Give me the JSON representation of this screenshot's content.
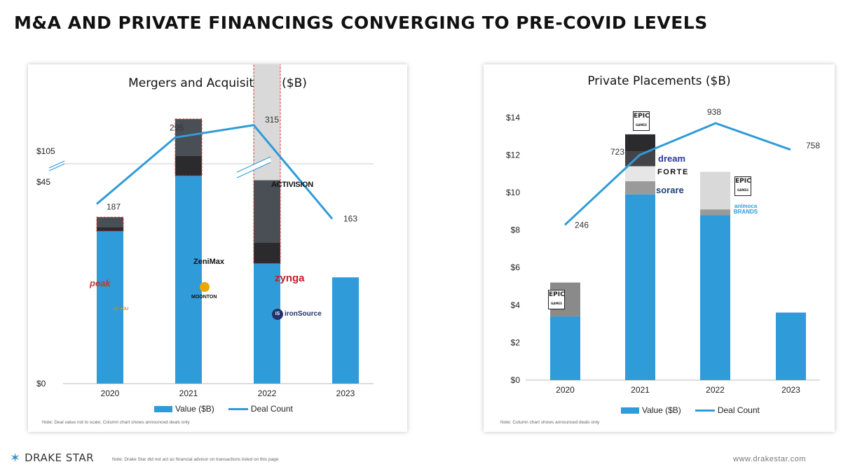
{
  "page": {
    "title": "M&A AND PRIVATE FINANCINGS CONVERGING TO PRE-COVID LEVELS",
    "footer_brand": "DRAKE STAR",
    "footer_note": "Note: Drake Star did not act as financial advisor on transactions listed on this page",
    "footer_url": "www.drakestar.com"
  },
  "colors": {
    "value_bar": "#2f9bd8",
    "deal_line": "#2f9bd8",
    "dark_segment": "#2b2b2e",
    "mid_segment": "#4a4e55",
    "light_segment": "#d9d9d9"
  },
  "chart_data": [
    {
      "type": "bar",
      "title": "Mergers and Acquisitions ($B)",
      "categories": [
        "2020",
        "2021",
        "2022",
        "2023"
      ],
      "y_tick_labels": [
        "$0",
        "$45",
        "$105"
      ],
      "axis_break": true,
      "series": [
        {
          "name": "Value ($B)",
          "kind": "bar",
          "values": [
            33,
            45,
            26,
            23
          ]
        },
        {
          "name": "Deal Count",
          "kind": "line",
          "values": [
            187,
            295,
            315,
            163
          ]
        }
      ],
      "value_labels": [
        "187",
        "295",
        "315",
        "163"
      ],
      "legend": [
        "Value ($B)",
        "Deal Count"
      ],
      "legend_position": "bottom",
      "note": "Note: Deal value not to scale; Column chart shows announced deals only",
      "annotated_deals": [
        "peak",
        "LE YOU",
        "ZeniMax",
        "MOONTON",
        "ACTIVISION",
        "zynga",
        "ironSource"
      ]
    },
    {
      "type": "bar",
      "title": "Private Placements ($B)",
      "categories": [
        "2020",
        "2021",
        "2022",
        "2023"
      ],
      "y_tick_labels": [
        "$0",
        "$2",
        "$4",
        "$6",
        "$8",
        "$10",
        "$12",
        "$14"
      ],
      "ylim": [
        0,
        14
      ],
      "series": [
        {
          "name": "Value ($B)",
          "kind": "bar",
          "values": [
            3.4,
            9.9,
            8.8,
            3.6
          ]
        },
        {
          "name": "Deal Count",
          "kind": "line",
          "values": [
            246,
            723,
            938,
            758
          ]
        }
      ],
      "stacked_totals": [
        5.2,
        13.1,
        11.1,
        3.6
      ],
      "value_labels": [
        "246",
        "723",
        "938",
        "758"
      ],
      "legend": [
        "Value ($B)",
        "Deal Count"
      ],
      "legend_position": "bottom",
      "note": "Note: Column chart shows announced deals only",
      "annotated_deals": [
        "EPIC GAMES",
        "dream",
        "FORTE",
        "sorare",
        "animoca BRANDS"
      ]
    }
  ]
}
